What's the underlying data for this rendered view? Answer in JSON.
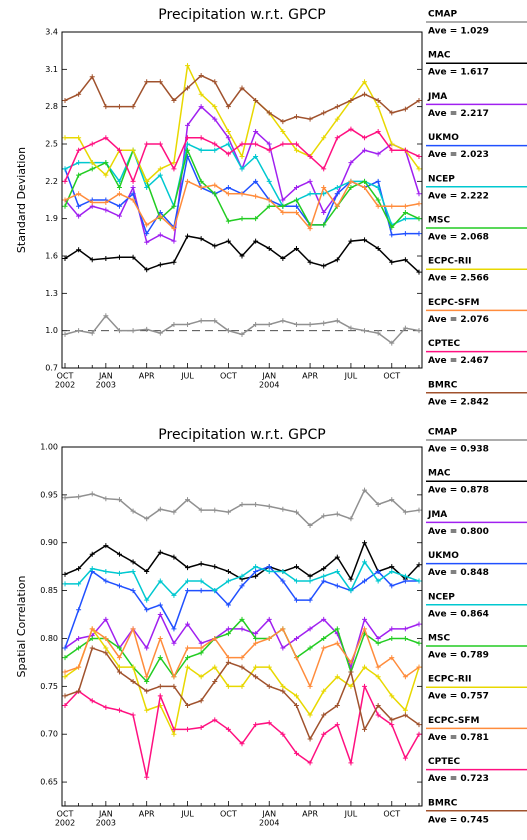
{
  "chart_data": [
    {
      "type": "line",
      "title": "Precipitation w.r.t. GPCP",
      "y_label": "Standard Deviation",
      "categories": [
        "OCT",
        null,
        null,
        "JAN",
        null,
        null,
        "APR",
        null,
        null,
        "JUL",
        null,
        null,
        "OCT",
        null,
        null,
        "JAN",
        null,
        null,
        "APR",
        null,
        null,
        "JUL",
        null,
        null,
        "OCT",
        null,
        null
      ],
      "category_years": [
        "2002",
        null,
        null,
        "2003",
        null,
        null,
        null,
        null,
        null,
        null,
        null,
        null,
        null,
        null,
        null,
        "2004",
        null,
        null,
        null,
        null,
        null,
        null,
        null,
        null,
        null,
        null,
        null
      ],
      "ylim": [
        0.7,
        3.4
      ],
      "yticks": [
        0.7,
        {
          "value": 1,
          "label": "1.0"
        },
        1.3,
        1.6,
        1.9,
        2.2,
        2.5,
        2.8,
        3.1,
        3.4
      ],
      "reference_line": 1,
      "series": [
        {
          "name": "CMAP",
          "ave": "Ave = 1.029",
          "color": "#909090",
          "values": [
            0.97,
            1.0,
            0.98,
            1.12,
            1.0,
            1.0,
            1.01,
            0.98,
            1.05,
            1.05,
            1.08,
            1.08,
            1.0,
            0.97,
            1.05,
            1.05,
            1.08,
            1.05,
            1.05,
            1.06,
            1.08,
            1.02,
            1.0,
            0.98,
            0.9,
            1.02,
            1.0
          ]
        },
        {
          "name": "MAC",
          "ave": "Ave = 1.617",
          "color": "#000000",
          "values": [
            1.58,
            1.65,
            1.57,
            1.58,
            1.59,
            1.59,
            1.49,
            1.53,
            1.55,
            1.76,
            1.74,
            1.68,
            1.72,
            1.6,
            1.72,
            1.66,
            1.58,
            1.66,
            1.55,
            1.52,
            1.57,
            1.72,
            1.73,
            1.66,
            1.55,
            1.57,
            1.47
          ]
        },
        {
          "name": "JMA",
          "ave": "Ave = 2.217",
          "color": "#a020f0",
          "values": [
            2.05,
            1.92,
            2.0,
            1.97,
            1.92,
            2.15,
            1.71,
            1.77,
            1.72,
            2.65,
            2.8,
            2.7,
            2.55,
            2.3,
            2.6,
            2.5,
            2.05,
            2.15,
            2.2,
            1.95,
            2.1,
            2.35,
            2.45,
            2.42,
            2.5,
            2.45,
            2.1
          ]
        },
        {
          "name": "UKMO",
          "ave": "Ave = 2.023",
          "color": "#2050ff",
          "values": [
            2.3,
            2.0,
            2.05,
            2.05,
            2.0,
            2.1,
            1.78,
            1.95,
            1.83,
            2.4,
            2.15,
            2.1,
            2.15,
            2.1,
            2.2,
            2.05,
            2.0,
            2.0,
            1.85,
            1.85,
            2.1,
            2.2,
            2.15,
            2.2,
            1.77,
            1.78,
            1.78
          ]
        },
        {
          "name": "NCEP",
          "ave": "Ave = 2.222",
          "color": "#00c8d0",
          "values": [
            2.3,
            2.35,
            2.35,
            2.35,
            2.2,
            2.45,
            2.15,
            2.25,
            2.0,
            2.5,
            2.45,
            2.45,
            2.5,
            2.3,
            2.4,
            2.2,
            2.0,
            2.05,
            2.1,
            2.1,
            2.15,
            2.2,
            2.2,
            2.15,
            1.85,
            1.9,
            1.9
          ]
        },
        {
          "name": "MSC",
          "ave": "Ave = 2.068",
          "color": "#22cc22",
          "values": [
            2.0,
            2.25,
            2.3,
            2.35,
            2.15,
            2.45,
            2.2,
            1.9,
            2.0,
            2.45,
            2.2,
            2.1,
            1.88,
            1.9,
            1.9,
            2.0,
            2.0,
            2.05,
            1.85,
            1.85,
            2.0,
            2.15,
            2.2,
            2.05,
            1.83,
            1.95,
            1.9
          ]
        },
        {
          "name": "ECPC-RII",
          "ave": "Ave = 2.566",
          "color": "#e8d800",
          "values": [
            2.55,
            2.55,
            2.35,
            2.25,
            2.45,
            2.45,
            2.2,
            2.3,
            2.35,
            3.13,
            2.9,
            2.8,
            2.6,
            2.4,
            2.85,
            2.75,
            2.6,
            2.45,
            2.4,
            2.55,
            2.7,
            2.85,
            3.0,
            2.8,
            2.5,
            2.45,
            2.3
          ]
        },
        {
          "name": "ECPC-SFM",
          "ave": "Ave = 2.076",
          "color": "#ff8c3c",
          "values": [
            2.05,
            2.1,
            2.03,
            2.03,
            2.1,
            2.05,
            1.85,
            1.92,
            1.82,
            2.2,
            2.15,
            2.17,
            2.1,
            2.1,
            2.08,
            2.05,
            1.95,
            1.95,
            1.82,
            2.15,
            2.0,
            2.2,
            2.15,
            2.0,
            2.0,
            2.0,
            2.02
          ]
        },
        {
          "name": "CPTEC",
          "ave": "Ave = 2.467",
          "color": "#ff1080",
          "values": [
            2.2,
            2.45,
            2.5,
            2.55,
            2.45,
            2.2,
            2.5,
            2.5,
            2.3,
            2.55,
            2.55,
            2.5,
            2.42,
            2.5,
            2.5,
            2.45,
            2.5,
            2.5,
            2.4,
            2.3,
            2.55,
            2.62,
            2.55,
            2.6,
            2.45,
            2.45,
            2.4
          ]
        },
        {
          "name": "BMRC",
          "ave": "Ave = 2.842",
          "color": "#a0522d",
          "values": [
            2.85,
            2.9,
            3.04,
            2.8,
            2.8,
            2.8,
            3.0,
            3.0,
            2.85,
            2.95,
            3.05,
            3.0,
            2.8,
            2.95,
            2.85,
            2.75,
            2.68,
            2.72,
            2.7,
            2.75,
            2.8,
            2.85,
            2.9,
            2.85,
            2.75,
            2.78,
            2.85
          ]
        }
      ]
    },
    {
      "type": "line",
      "title": "Precipitation w.r.t. GPCP",
      "y_label": "Spatial Correlation",
      "categories": [
        "OCT",
        null,
        null,
        "JAN",
        null,
        null,
        "APR",
        null,
        null,
        "JUL",
        null,
        null,
        "OCT",
        null,
        null,
        "JAN",
        null,
        null,
        "APR",
        null,
        null,
        "JUL",
        null,
        null,
        "OCT",
        null,
        null
      ],
      "category_years": [
        "2002",
        null,
        null,
        "2003",
        null,
        null,
        null,
        null,
        null,
        null,
        null,
        null,
        null,
        null,
        null,
        "2004",
        null,
        null,
        null,
        null,
        null,
        null,
        null,
        null,
        null,
        null,
        null
      ],
      "ylim": [
        0.625,
        1.0
      ],
      "yticks": [
        0.65,
        {
          "value": 0.7,
          "label": "0.70"
        },
        0.75,
        {
          "value": 0.8,
          "label": "0.80"
        },
        0.85,
        {
          "value": 0.9,
          "label": "0.90"
        },
        0.95,
        {
          "value": 1,
          "label": "1.00"
        }
      ],
      "series": [
        {
          "name": "CMAP",
          "ave": "Ave = 0.938",
          "color": "#909090",
          "values": [
            0.947,
            0.948,
            0.951,
            0.946,
            0.945,
            0.933,
            0.925,
            0.935,
            0.932,
            0.945,
            0.934,
            0.934,
            0.932,
            0.94,
            0.94,
            0.938,
            0.935,
            0.932,
            0.918,
            0.928,
            0.93,
            0.925,
            0.955,
            0.94,
            0.945,
            0.932,
            0.934
          ]
        },
        {
          "name": "MAC",
          "ave": "Ave = 0.878",
          "color": "#000000",
          "values": [
            0.867,
            0.873,
            0.888,
            0.897,
            0.888,
            0.88,
            0.87,
            0.89,
            0.885,
            0.874,
            0.878,
            0.875,
            0.87,
            0.862,
            0.865,
            0.875,
            0.87,
            0.875,
            0.865,
            0.873,
            0.885,
            0.862,
            0.9,
            0.87,
            0.875,
            0.862,
            0.877
          ]
        },
        {
          "name": "JMA",
          "ave": "Ave = 0.800",
          "color": "#a020f0",
          "values": [
            0.79,
            0.8,
            0.803,
            0.82,
            0.79,
            0.81,
            0.79,
            0.825,
            0.795,
            0.815,
            0.795,
            0.8,
            0.81,
            0.81,
            0.805,
            0.82,
            0.79,
            0.8,
            0.81,
            0.82,
            0.805,
            0.77,
            0.82,
            0.8,
            0.81,
            0.81,
            0.815
          ]
        },
        {
          "name": "UKMO",
          "ave": "Ave = 0.848",
          "color": "#2050ff",
          "values": [
            0.79,
            0.83,
            0.87,
            0.86,
            0.855,
            0.85,
            0.83,
            0.835,
            0.81,
            0.85,
            0.85,
            0.85,
            0.835,
            0.855,
            0.87,
            0.875,
            0.86,
            0.84,
            0.84,
            0.86,
            0.855,
            0.85,
            0.86,
            0.87,
            0.855,
            0.86,
            0.86
          ]
        },
        {
          "name": "NCEP",
          "ave": "Ave = 0.864",
          "color": "#00c8d0",
          "values": [
            0.857,
            0.857,
            0.873,
            0.87,
            0.868,
            0.87,
            0.84,
            0.86,
            0.845,
            0.86,
            0.86,
            0.85,
            0.86,
            0.865,
            0.875,
            0.87,
            0.87,
            0.86,
            0.86,
            0.865,
            0.87,
            0.85,
            0.88,
            0.86,
            0.87,
            0.865,
            0.86
          ]
        },
        {
          "name": "MSC",
          "ave": "Ave = 0.789",
          "color": "#22cc22",
          "values": [
            0.78,
            0.79,
            0.8,
            0.8,
            0.79,
            0.77,
            0.755,
            0.78,
            0.76,
            0.78,
            0.785,
            0.8,
            0.805,
            0.82,
            0.8,
            0.8,
            0.81,
            0.78,
            0.79,
            0.8,
            0.81,
            0.765,
            0.805,
            0.795,
            0.8,
            0.8,
            0.795
          ]
        },
        {
          "name": "ECPC-RII",
          "ave": "Ave = 0.757",
          "color": "#e8d800",
          "values": [
            0.76,
            0.77,
            0.81,
            0.79,
            0.77,
            0.77,
            0.725,
            0.73,
            0.7,
            0.77,
            0.76,
            0.77,
            0.75,
            0.75,
            0.77,
            0.77,
            0.75,
            0.74,
            0.72,
            0.745,
            0.76,
            0.75,
            0.77,
            0.76,
            0.74,
            0.725,
            0.77
          ]
        },
        {
          "name": "ECPC-SFM",
          "ave": "Ave = 0.781",
          "color": "#ff8c3c",
          "values": [
            0.765,
            0.77,
            0.81,
            0.8,
            0.78,
            0.81,
            0.76,
            0.8,
            0.76,
            0.79,
            0.79,
            0.8,
            0.78,
            0.78,
            0.795,
            0.8,
            0.81,
            0.78,
            0.75,
            0.79,
            0.795,
            0.775,
            0.81,
            0.77,
            0.78,
            0.76,
            0.77
          ]
        },
        {
          "name": "CPTEC",
          "ave": "Ave = 0.723",
          "color": "#ff1080",
          "values": [
            0.73,
            0.745,
            0.735,
            0.728,
            0.725,
            0.72,
            0.655,
            0.74,
            0.705,
            0.705,
            0.707,
            0.715,
            0.705,
            0.69,
            0.71,
            0.712,
            0.7,
            0.68,
            0.67,
            0.7,
            0.71,
            0.67,
            0.75,
            0.72,
            0.71,
            0.675,
            0.7
          ]
        },
        {
          "name": "BMRC",
          "ave": "Ave = 0.745",
          "color": "#a0522d",
          "values": [
            0.74,
            0.745,
            0.79,
            0.785,
            0.765,
            0.755,
            0.745,
            0.75,
            0.75,
            0.73,
            0.735,
            0.755,
            0.775,
            0.77,
            0.76,
            0.75,
            0.745,
            0.73,
            0.695,
            0.72,
            0.73,
            0.765,
            0.705,
            0.73,
            0.715,
            0.72,
            0.71
          ]
        }
      ]
    }
  ]
}
